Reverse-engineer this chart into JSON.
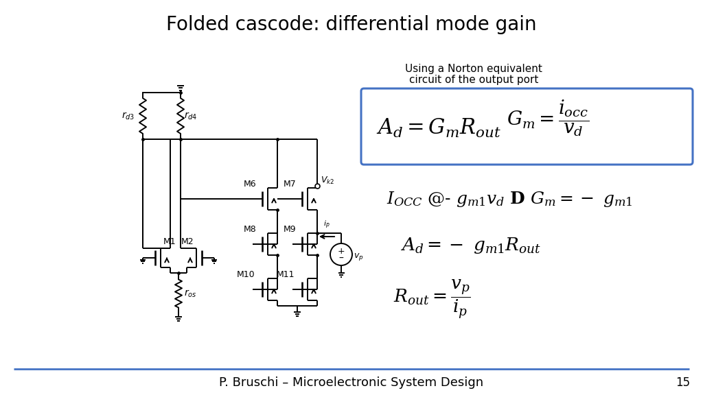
{
  "title": "Folded cascode: differential mode gain",
  "title_fontsize": 20,
  "title_fontweight": "normal",
  "bg_color": "#ffffff",
  "footer_text": "P. Bruschi – Microelectronic System Design",
  "footer_page": "15",
  "norton_text_line1": "Using a Norton equivalent",
  "norton_text_line2": "circuit of the output port",
  "box_color": "#4472c4",
  "line_color": "#000000",
  "footer_line_color": "#4472c4",
  "lw": 1.4
}
